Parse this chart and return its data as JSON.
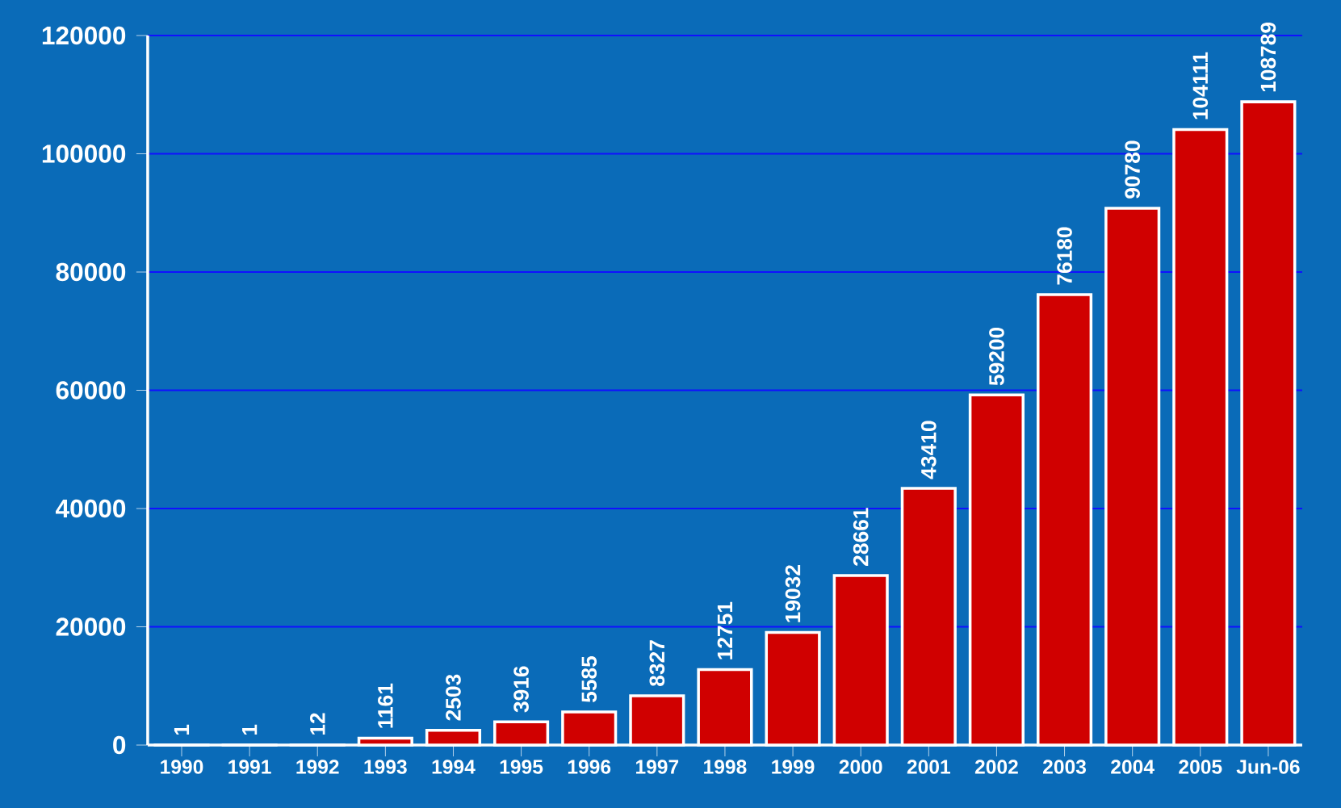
{
  "chart_data": {
    "type": "bar",
    "categories": [
      "1990",
      "1991",
      "1992",
      "1993",
      "1994",
      "1995",
      "1996",
      "1997",
      "1998",
      "1999",
      "2000",
      "2001",
      "2002",
      "2003",
      "2004",
      "2005",
      "Jun-06"
    ],
    "values": [
      1,
      1,
      12,
      1161,
      2503,
      3916,
      5585,
      8327,
      12751,
      19032,
      28661,
      43410,
      59200,
      76180,
      90780,
      104111,
      108789
    ],
    "color": "#d00000",
    "ylim": [
      0,
      120000
    ],
    "yticks": [
      0,
      20000,
      40000,
      60000,
      80000,
      100000,
      120000
    ],
    "grid": "y",
    "data_labels": true
  }
}
